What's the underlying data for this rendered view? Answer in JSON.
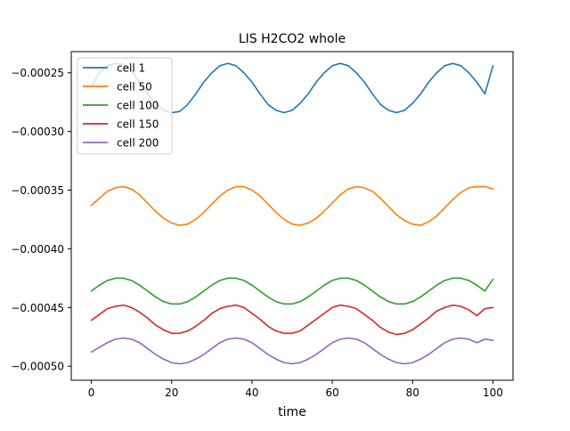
{
  "chart_data": {
    "type": "line",
    "title": "LIS H2CO2 whole",
    "xlabel": "time",
    "ylabel": "",
    "xlim": [
      -5,
      105
    ],
    "ylim": [
      -0.000512,
      -0.000232
    ],
    "x_ticks": [
      0,
      20,
      40,
      60,
      80,
      100
    ],
    "x_tick_labels": [
      "0",
      "20",
      "40",
      "60",
      "80",
      "100"
    ],
    "y_ticks": [
      -0.0005,
      -0.00045,
      -0.0004,
      -0.00035,
      -0.0003,
      -0.00025
    ],
    "y_tick_labels": [
      "−0.00050",
      "−0.00045",
      "−0.00040",
      "−0.00035",
      "−0.00030",
      "−0.00025"
    ],
    "legend_position": "top-left",
    "grid": false,
    "x": [
      0,
      2,
      4,
      6,
      8,
      10,
      12,
      14,
      16,
      18,
      20,
      22,
      24,
      26,
      28,
      30,
      32,
      34,
      36,
      38,
      40,
      42,
      44,
      46,
      48,
      50,
      52,
      54,
      56,
      58,
      60,
      62,
      64,
      66,
      68,
      70,
      72,
      74,
      76,
      78,
      80,
      82,
      84,
      86,
      88,
      90,
      92,
      94,
      96,
      98,
      100
    ],
    "series": [
      {
        "name": "cell 1",
        "color": "#1f77b4",
        "values": [
          -0.000262,
          -0.00025,
          -0.000244,
          -0.000242,
          -0.000243,
          -0.000248,
          -0.000258,
          -0.000268,
          -0.000276,
          -0.000282,
          -0.000284,
          -0.000283,
          -0.000277,
          -0.000268,
          -0.000258,
          -0.00025,
          -0.000244,
          -0.000242,
          -0.000244,
          -0.00025,
          -0.000258,
          -0.000268,
          -0.000277,
          -0.000282,
          -0.000284,
          -0.000282,
          -0.000276,
          -0.000268,
          -0.000258,
          -0.00025,
          -0.000244,
          -0.000242,
          -0.000244,
          -0.00025,
          -0.000258,
          -0.000268,
          -0.000277,
          -0.000282,
          -0.000284,
          -0.000282,
          -0.000276,
          -0.000268,
          -0.000258,
          -0.00025,
          -0.000244,
          -0.000242,
          -0.000244,
          -0.00025,
          -0.000258,
          -0.000268,
          -0.000244
        ]
      },
      {
        "name": "cell 50",
        "color": "#ff7f0e",
        "values": [
          -0.000363,
          -0.000357,
          -0.000351,
          -0.000348,
          -0.000347,
          -0.000349,
          -0.000354,
          -0.000361,
          -0.000368,
          -0.000374,
          -0.000378,
          -0.00038,
          -0.000379,
          -0.000375,
          -0.000369,
          -0.000362,
          -0.000355,
          -0.00035,
          -0.000347,
          -0.000347,
          -0.00035,
          -0.000355,
          -0.000362,
          -0.000369,
          -0.000375,
          -0.000379,
          -0.00038,
          -0.000378,
          -0.000374,
          -0.000368,
          -0.000361,
          -0.000354,
          -0.000349,
          -0.000347,
          -0.000348,
          -0.000351,
          -0.000357,
          -0.000364,
          -0.000371,
          -0.000376,
          -0.000379,
          -0.00038,
          -0.000377,
          -0.000372,
          -0.000365,
          -0.000358,
          -0.000352,
          -0.000348,
          -0.000347,
          -0.000347,
          -0.000349
        ]
      },
      {
        "name": "cell 100",
        "color": "#2ca02c",
        "values": [
          -0.000436,
          -0.000431,
          -0.000427,
          -0.000425,
          -0.000425,
          -0.000427,
          -0.000431,
          -0.000436,
          -0.000441,
          -0.000445,
          -0.000447,
          -0.000447,
          -0.000445,
          -0.000441,
          -0.000436,
          -0.000431,
          -0.000427,
          -0.000425,
          -0.000425,
          -0.000427,
          -0.000431,
          -0.000436,
          -0.000441,
          -0.000445,
          -0.000447,
          -0.000447,
          -0.000445,
          -0.000441,
          -0.000436,
          -0.000431,
          -0.000427,
          -0.000425,
          -0.000425,
          -0.000427,
          -0.000431,
          -0.000436,
          -0.000441,
          -0.000445,
          -0.000447,
          -0.000447,
          -0.000445,
          -0.000441,
          -0.000436,
          -0.000431,
          -0.000427,
          -0.000425,
          -0.000425,
          -0.000427,
          -0.000431,
          -0.000436,
          -0.000426
        ]
      },
      {
        "name": "cell 150",
        "color": "#d62728",
        "values": [
          -0.000461,
          -0.000456,
          -0.000451,
          -0.000449,
          -0.000448,
          -0.00045,
          -0.000454,
          -0.000459,
          -0.000465,
          -0.000469,
          -0.000472,
          -0.000472,
          -0.00047,
          -0.000466,
          -0.000461,
          -0.000455,
          -0.000451,
          -0.000449,
          -0.000448,
          -0.00045,
          -0.000455,
          -0.00046,
          -0.000466,
          -0.00047,
          -0.000472,
          -0.000472,
          -0.00047,
          -0.000465,
          -0.00046,
          -0.000455,
          -0.00045,
          -0.000448,
          -0.000449,
          -0.000451,
          -0.000456,
          -0.000461,
          -0.000467,
          -0.000471,
          -0.000473,
          -0.000472,
          -0.000469,
          -0.000464,
          -0.000459,
          -0.000453,
          -0.00045,
          -0.000448,
          -0.000449,
          -0.000452,
          -0.000457,
          -0.000451,
          -0.00045
        ]
      },
      {
        "name": "cell 200",
        "color": "#9467bd",
        "values": [
          -0.000488,
          -0.000484,
          -0.00048,
          -0.000477,
          -0.000476,
          -0.000477,
          -0.00048,
          -0.000485,
          -0.00049,
          -0.000494,
          -0.000497,
          -0.000498,
          -0.000497,
          -0.000494,
          -0.00049,
          -0.000485,
          -0.00048,
          -0.000477,
          -0.000476,
          -0.000477,
          -0.00048,
          -0.000485,
          -0.00049,
          -0.000494,
          -0.000497,
          -0.000498,
          -0.000497,
          -0.000494,
          -0.00049,
          -0.000485,
          -0.00048,
          -0.000477,
          -0.000476,
          -0.000477,
          -0.00048,
          -0.000485,
          -0.00049,
          -0.000494,
          -0.000497,
          -0.000498,
          -0.000497,
          -0.000494,
          -0.00049,
          -0.000485,
          -0.00048,
          -0.000477,
          -0.000476,
          -0.000477,
          -0.00048,
          -0.000477,
          -0.000478
        ]
      }
    ]
  }
}
